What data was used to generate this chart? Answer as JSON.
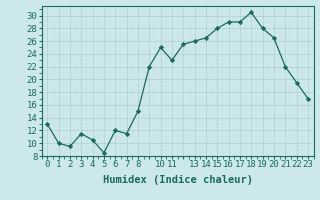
{
  "x": [
    0,
    1,
    2,
    3,
    4,
    5,
    6,
    7,
    8,
    9,
    10,
    11,
    12,
    13,
    14,
    15,
    16,
    17,
    18,
    19,
    20,
    21,
    22,
    23
  ],
  "y": [
    13,
    10,
    9.5,
    11.5,
    10.5,
    8.5,
    12,
    11.5,
    15,
    22,
    25,
    23,
    25.5,
    26,
    26.5,
    28,
    29,
    29,
    30.5,
    28,
    26.5,
    22,
    19.5,
    17
  ],
  "xlabel": "Humidex (Indice chaleur)",
  "xlim": [
    -0.5,
    23.5
  ],
  "ylim": [
    8,
    31.5
  ],
  "yticks": [
    8,
    10,
    12,
    14,
    16,
    18,
    20,
    22,
    24,
    26,
    28,
    30
  ],
  "xtick_positions": [
    0,
    1,
    2,
    3,
    4,
    5,
    6,
    7,
    8,
    9,
    10,
    11,
    12,
    13,
    14,
    15,
    16,
    17,
    18,
    19,
    20,
    21,
    22,
    23
  ],
  "xtick_labels": [
    "0",
    "1",
    "2",
    "3",
    "4",
    "5",
    "6",
    "7",
    "8",
    "",
    "10",
    "11",
    "",
    "13",
    "14",
    "15",
    "16",
    "17",
    "18",
    "19",
    "20",
    "21",
    "22",
    "23"
  ],
  "line_color": "#1a6b5a",
  "marker_color": "#1a6b5a",
  "bg_color": "#cce8ec",
  "grid_major_color": "#b0cdd1",
  "grid_minor_color": "#c8e0e4",
  "label_fontsize": 7.5,
  "tick_fontsize": 6.5
}
